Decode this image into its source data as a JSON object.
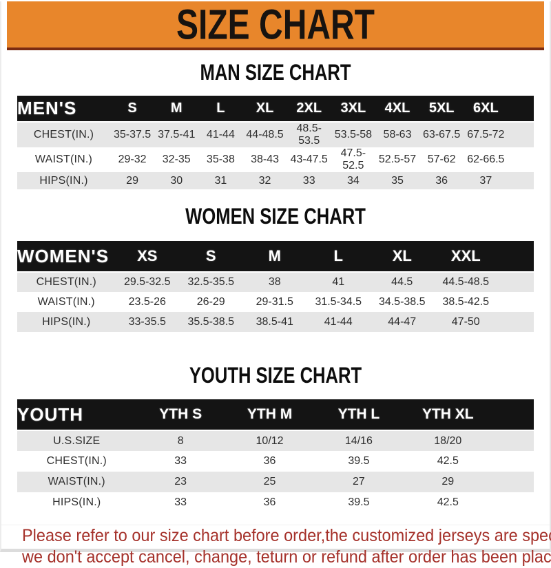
{
  "banner": {
    "title": "SIZE CHART",
    "bg_color": "#E8862B",
    "underline_color": "#7B2B12",
    "text_color": "#171310"
  },
  "sections": [
    {
      "id": "mens",
      "heading": "MAN SIZE CHART",
      "header": {
        "label": "MEN'S",
        "columns": [
          "S",
          "M",
          "L",
          "XL",
          "2XL",
          "3XL",
          "4XL",
          "5XL",
          "6XL"
        ]
      },
      "rows": [
        {
          "label": "CHEST(IN.)",
          "values": [
            "35-37.5",
            "37.5-41",
            "41-44",
            "44-48.5",
            "48.5-53.5",
            "53.5-58",
            "58-63",
            "63-67.5",
            "67.5-72"
          ]
        },
        {
          "label": "WAIST(IN.)",
          "values": [
            "29-32",
            "32-35",
            "35-38",
            "38-43",
            "43-47.5",
            "47.5-52.5",
            "52.5-57",
            "57-62",
            "62-66.5"
          ]
        },
        {
          "label": "HIPS(IN.)",
          "values": [
            "29",
            "30",
            "31",
            "32",
            "33",
            "34",
            "35",
            "36",
            "37"
          ]
        }
      ]
    },
    {
      "id": "womens",
      "heading": "WOMEN SIZE CHART",
      "header": {
        "label": "WOMEN'S",
        "columns": [
          "XS",
          "S",
          "M",
          "L",
          "XL",
          "XXL"
        ]
      },
      "rows": [
        {
          "label": "CHEST(IN.)",
          "values": [
            "29.5-32.5",
            "32.5-35.5",
            "38",
            "41",
            "44.5",
            "44.5-48.5"
          ]
        },
        {
          "label": "WAIST(IN.)",
          "values": [
            "23.5-26",
            "26-29",
            "29-31.5",
            "31.5-34.5",
            "34.5-38.5",
            "38.5-42.5"
          ]
        },
        {
          "label": "HIPS(IN.)",
          "values": [
            "33-35.5",
            "35.5-38.5",
            "38.5-41",
            "41-44",
            "44-47",
            "47-50"
          ]
        }
      ]
    },
    {
      "id": "youth",
      "heading": "YOUTH SIZE CHART",
      "header": {
        "label": "YOUTH",
        "columns": [
          "YTH S",
          "YTH M",
          "YTH L",
          "YTH XL"
        ]
      },
      "rows": [
        {
          "label": "U.S.SIZE",
          "values": [
            "8",
            "10/12",
            "14/16",
            "18/20"
          ]
        },
        {
          "label": "CHEST(IN.)",
          "values": [
            "33",
            "36",
            "39.5",
            "42.5"
          ]
        },
        {
          "label": "WAIST(IN.)",
          "values": [
            "23",
            "25",
            "27",
            "29"
          ]
        },
        {
          "label": "HIPS(IN.)",
          "values": [
            "33",
            "36",
            "39.5",
            "42.5"
          ]
        }
      ]
    }
  ],
  "note": {
    "color": "#A5312A",
    "lines": [
      "Please refer to our size chart before order,the customized jerseys are special products,",
      "we don't accept cancel, change, teturn or refund after order has been placed!"
    ]
  }
}
